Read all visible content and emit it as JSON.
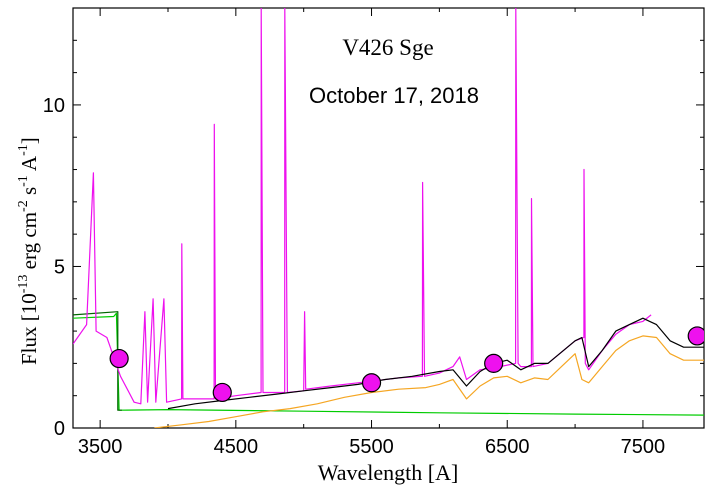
{
  "chart_data": {
    "type": "line",
    "title": "V426 Sge",
    "subtitle": "October 17, 2018",
    "xlabel": "Wavelength [A]",
    "ylabel": {
      "base": "Flux [10",
      "e1": "-13",
      "mid1": " erg cm",
      "e2": "-2",
      "mid2": " s",
      "e3": "-1",
      "mid3": " A",
      "e4": "-1",
      "end": "]"
    },
    "xlim": [
      3300,
      7950
    ],
    "ylim": [
      0,
      13
    ],
    "xticks": [
      3500,
      4500,
      5500,
      6500,
      7500
    ],
    "yticks": [
      0,
      5,
      10
    ],
    "grid": false,
    "series": [
      {
        "color": "#00cc00",
        "style": "line",
        "points": [
          [
            3300,
            3.4
          ],
          [
            3600,
            3.45
          ],
          [
            3620,
            3.55
          ],
          [
            3640,
            0.55
          ],
          [
            4000,
            0.57
          ],
          [
            5000,
            0.52
          ],
          [
            6000,
            0.47
          ],
          [
            7000,
            0.43
          ],
          [
            7950,
            0.4
          ]
        ]
      },
      {
        "color": "#006600",
        "style": "line",
        "points": [
          [
            3300,
            3.5
          ],
          [
            3630,
            3.6
          ],
          [
            3630,
            0.55
          ],
          [
            3660,
            0.55
          ]
        ]
      },
      {
        "color": "#f5a623",
        "style": "line",
        "points": [
          [
            3900,
            0.0
          ],
          [
            4100,
            0.1
          ],
          [
            4300,
            0.2
          ],
          [
            4500,
            0.35
          ],
          [
            4700,
            0.5
          ],
          [
            4900,
            0.6
          ],
          [
            5100,
            0.75
          ],
          [
            5300,
            0.95
          ],
          [
            5500,
            1.1
          ],
          [
            5700,
            1.2
          ],
          [
            5900,
            1.25
          ],
          [
            6000,
            1.35
          ],
          [
            6100,
            1.5
          ],
          [
            6200,
            0.9
          ],
          [
            6300,
            1.3
          ],
          [
            6400,
            1.55
          ],
          [
            6500,
            1.6
          ],
          [
            6600,
            1.4
          ],
          [
            6700,
            1.55
          ],
          [
            6800,
            1.5
          ],
          [
            6900,
            1.9
          ],
          [
            7000,
            2.3
          ],
          [
            7050,
            1.5
          ],
          [
            7100,
            1.4
          ],
          [
            7200,
            1.9
          ],
          [
            7300,
            2.4
          ],
          [
            7400,
            2.7
          ],
          [
            7500,
            2.85
          ],
          [
            7600,
            2.8
          ],
          [
            7700,
            2.3
          ],
          [
            7800,
            2.1
          ],
          [
            7950,
            2.1
          ]
        ]
      },
      {
        "color": "#ee11ee",
        "style": "line",
        "points": [
          [
            3300,
            2.6
          ],
          [
            3400,
            3.2
          ],
          [
            3450,
            7.9
          ],
          [
            3470,
            3.0
          ],
          [
            3550,
            2.8
          ],
          [
            3600,
            2.2
          ],
          [
            3650,
            1.6
          ],
          [
            3700,
            1.2
          ],
          [
            3750,
            0.8
          ],
          [
            3800,
            0.75
          ],
          [
            3830,
            3.6
          ],
          [
            3850,
            0.8
          ],
          [
            3890,
            4.0
          ],
          [
            3910,
            0.8
          ],
          [
            3970,
            4.0
          ],
          [
            3990,
            0.8
          ],
          [
            4100,
            0.9
          ],
          [
            4102,
            5.7
          ],
          [
            4110,
            0.9
          ],
          [
            4340,
            0.9
          ],
          [
            4341,
            9.4
          ],
          [
            4350,
            0.9
          ],
          [
            4500,
            1.0
          ],
          [
            4686,
            1.1
          ],
          [
            4687,
            13.0
          ],
          [
            4700,
            1.1
          ],
          [
            4860,
            1.1
          ],
          [
            4861,
            13.0
          ],
          [
            4880,
            1.1
          ],
          [
            5000,
            1.15
          ],
          [
            5007,
            3.6
          ],
          [
            5015,
            1.2
          ],
          [
            5200,
            1.3
          ],
          [
            5400,
            1.4
          ],
          [
            5500,
            1.45
          ],
          [
            5700,
            1.55
          ],
          [
            5875,
            1.6
          ],
          [
            5876,
            7.6
          ],
          [
            5890,
            1.6
          ],
          [
            6000,
            1.7
          ],
          [
            6100,
            1.9
          ],
          [
            6150,
            2.2
          ],
          [
            6200,
            1.5
          ],
          [
            6300,
            1.8
          ],
          [
            6450,
            1.9
          ],
          [
            6562,
            2.0
          ],
          [
            6563,
            13.0
          ],
          [
            6580,
            2.0
          ],
          [
            6600,
            1.9
          ],
          [
            6678,
            1.9
          ],
          [
            6679,
            7.1
          ],
          [
            6690,
            1.9
          ],
          [
            6800,
            2.0
          ],
          [
            7000,
            2.7
          ],
          [
            7065,
            2.8
          ],
          [
            7066,
            8.0
          ],
          [
            7075,
            2.0
          ],
          [
            7100,
            1.8
          ],
          [
            7200,
            2.4
          ],
          [
            7300,
            2.9
          ],
          [
            7400,
            3.2
          ],
          [
            7500,
            3.3
          ],
          [
            7560,
            3.5
          ]
        ]
      },
      {
        "color": "#000000",
        "style": "line",
        "points": [
          [
            4000,
            0.6
          ],
          [
            4200,
            0.75
          ],
          [
            4400,
            0.85
          ],
          [
            4600,
            0.95
          ],
          [
            4800,
            1.05
          ],
          [
            5000,
            1.15
          ],
          [
            5200,
            1.25
          ],
          [
            5400,
            1.35
          ],
          [
            5600,
            1.5
          ],
          [
            5800,
            1.6
          ],
          [
            6000,
            1.75
          ],
          [
            6100,
            1.8
          ],
          [
            6200,
            1.3
          ],
          [
            6300,
            1.75
          ],
          [
            6400,
            2.0
          ],
          [
            6500,
            2.1
          ],
          [
            6600,
            1.8
          ],
          [
            6700,
            2.0
          ],
          [
            6800,
            2.0
          ],
          [
            7000,
            2.7
          ],
          [
            7050,
            2.8
          ],
          [
            7100,
            1.9
          ],
          [
            7200,
            2.4
          ],
          [
            7300,
            3.0
          ],
          [
            7400,
            3.2
          ],
          [
            7500,
            3.4
          ],
          [
            7550,
            3.3
          ],
          [
            7600,
            3.2
          ],
          [
            7700,
            2.7
          ],
          [
            7800,
            2.5
          ],
          [
            7950,
            2.5
          ]
        ]
      },
      {
        "color": "#ee11ee",
        "style": "markers",
        "points": [
          [
            3640,
            2.15
          ],
          [
            4400,
            1.1
          ],
          [
            5500,
            1.4
          ],
          [
            6400,
            2.0
          ],
          [
            7900,
            2.85
          ]
        ]
      }
    ]
  }
}
